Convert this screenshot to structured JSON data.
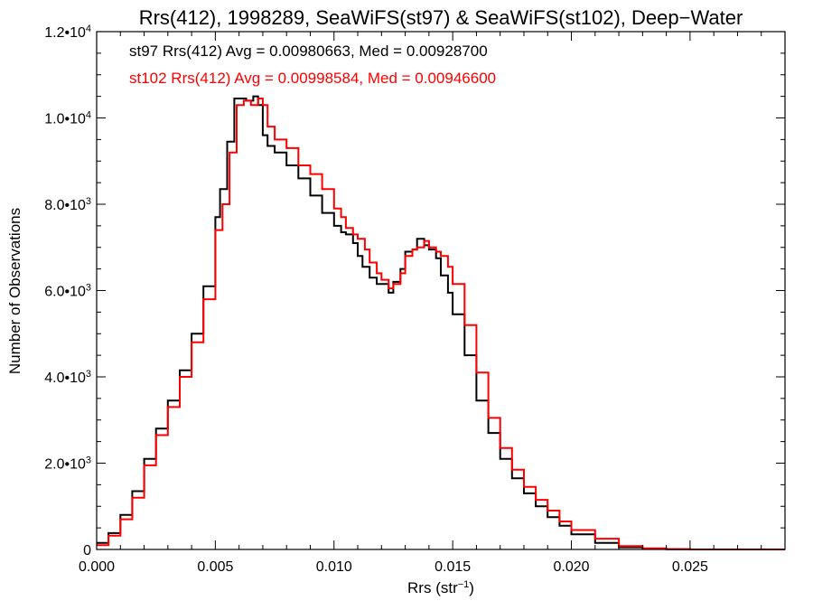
{
  "chart_data": {
    "type": "line",
    "title": "Rrs(412), 1998289, SeaWiFS(st97) & SeaWiFS(st102), Deep−Water",
    "xlabel": "Rrs (str",
    "xlabel_sup": "−1",
    "xlabel_end": ")",
    "ylabel": "Number of Observations",
    "xlim": [
      0.0,
      0.029
    ],
    "ylim": [
      0,
      12000
    ],
    "x_ticks": [
      {
        "value": 0.0,
        "label": "0.000"
      },
      {
        "value": 0.005,
        "label": "0.005"
      },
      {
        "value": 0.01,
        "label": "0.010"
      },
      {
        "value": 0.015,
        "label": "0.015"
      },
      {
        "value": 0.02,
        "label": "0.020"
      },
      {
        "value": 0.025,
        "label": "0.025"
      }
    ],
    "y_ticks": [
      {
        "value": 0,
        "label": "0",
        "exp": ""
      },
      {
        "value": 2000,
        "label": "2.0•10",
        "exp": "3"
      },
      {
        "value": 4000,
        "label": "4.0•10",
        "exp": "3"
      },
      {
        "value": 6000,
        "label": "6.0•10",
        "exp": "3"
      },
      {
        "value": 8000,
        "label": "8.0•10",
        "exp": "3"
      },
      {
        "value": 10000,
        "label": "1.0•10",
        "exp": "4"
      },
      {
        "value": 12000,
        "label": "1.2•10",
        "exp": "4"
      }
    ],
    "annotations": [
      {
        "text": "st97 Rrs(412) Avg = 0.00980663, Med = 0.00928700",
        "color": "#000000"
      },
      {
        "text": "st102 Rrs(412) Avg = 0.00998584, Med = 0.00946600",
        "color": "#ff0000"
      }
    ],
    "grid": false,
    "series": [
      {
        "color": "#000000",
        "x": [
          0.0,
          0.0005,
          0.001,
          0.0015,
          0.002,
          0.0025,
          0.003,
          0.0035,
          0.004,
          0.0045,
          0.005,
          0.0052,
          0.0055,
          0.0058,
          0.006,
          0.0063,
          0.0066,
          0.0068,
          0.007,
          0.0072,
          0.0075,
          0.008,
          0.0085,
          0.009,
          0.0095,
          0.01,
          0.0103,
          0.0105,
          0.0108,
          0.011,
          0.0112,
          0.0115,
          0.0118,
          0.012,
          0.0123,
          0.0125,
          0.0128,
          0.013,
          0.0133,
          0.0135,
          0.0138,
          0.014,
          0.0143,
          0.0145,
          0.0148,
          0.015,
          0.0155,
          0.016,
          0.0165,
          0.017,
          0.0175,
          0.018,
          0.0185,
          0.019,
          0.0195,
          0.02,
          0.021,
          0.022,
          0.023,
          0.024,
          0.025,
          0.026,
          0.027,
          0.028,
          0.029
        ],
        "y": [
          150,
          380,
          800,
          1350,
          2100,
          2800,
          3450,
          4150,
          5000,
          6100,
          7700,
          8350,
          9450,
          10450,
          10450,
          10400,
          10500,
          10300,
          9600,
          9350,
          9200,
          8900,
          8600,
          8200,
          7800,
          7500,
          7350,
          7300,
          7100,
          6800,
          6550,
          6300,
          6150,
          6150,
          5950,
          6200,
          6500,
          6900,
          6950,
          7200,
          7050,
          6950,
          6750,
          6350,
          5950,
          5450,
          4500,
          3450,
          2700,
          2100,
          1650,
          1300,
          1000,
          750,
          550,
          350,
          150,
          50,
          15,
          5,
          0,
          0,
          0,
          0,
          0
        ]
      },
      {
        "color": "#ff0000",
        "x": [
          0.0,
          0.0005,
          0.001,
          0.0015,
          0.002,
          0.0025,
          0.003,
          0.0035,
          0.004,
          0.0045,
          0.005,
          0.0053,
          0.0056,
          0.0059,
          0.0062,
          0.0065,
          0.0068,
          0.007,
          0.0072,
          0.0075,
          0.008,
          0.0085,
          0.009,
          0.0095,
          0.01,
          0.0103,
          0.0105,
          0.0108,
          0.011,
          0.0113,
          0.0115,
          0.0118,
          0.012,
          0.0123,
          0.0125,
          0.0128,
          0.013,
          0.0133,
          0.0135,
          0.0138,
          0.014,
          0.0143,
          0.0145,
          0.0148,
          0.015,
          0.0155,
          0.016,
          0.0165,
          0.017,
          0.0175,
          0.018,
          0.0185,
          0.019,
          0.0195,
          0.02,
          0.021,
          0.022,
          0.023,
          0.024,
          0.025,
          0.026,
          0.027,
          0.028,
          0.029
        ],
        "y": [
          100,
          320,
          700,
          1200,
          1950,
          2650,
          3300,
          4000,
          4800,
          5800,
          7400,
          8000,
          9200,
          10300,
          10400,
          10300,
          10450,
          10300,
          9800,
          9500,
          9300,
          8900,
          8700,
          8350,
          7900,
          7700,
          7450,
          7300,
          7200,
          6950,
          6650,
          6400,
          6250,
          6050,
          6150,
          6400,
          6800,
          6950,
          7000,
          7150,
          7000,
          6900,
          6800,
          6550,
          6150,
          5200,
          4100,
          3050,
          2350,
          1850,
          1450,
          1150,
          900,
          650,
          450,
          250,
          80,
          25,
          8,
          0,
          0,
          0,
          0,
          0
        ]
      }
    ]
  }
}
